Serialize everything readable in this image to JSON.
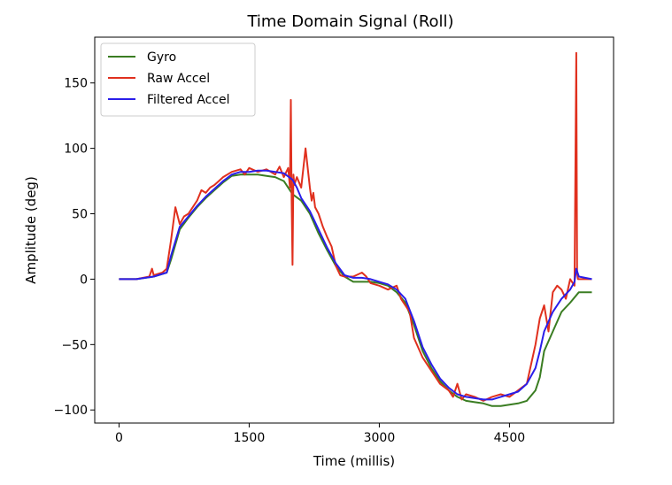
{
  "chart_data": {
    "type": "line",
    "title": "Time Domain Signal (Roll)",
    "xlabel": "Time (millis)",
    "ylabel": "Amplitude (deg)",
    "xlim": [
      -280,
      5700
    ],
    "ylim": [
      -110,
      185
    ],
    "xticks": [
      0,
      1500,
      3000,
      4500
    ],
    "xtick_labels": [
      "0",
      "1500",
      "3000",
      "4500"
    ],
    "yticks": [
      -100,
      -50,
      0,
      50,
      100,
      150
    ],
    "ytick_labels": [
      "−100",
      "−50",
      "0",
      "50",
      "100",
      "150"
    ],
    "grid": false,
    "legend": {
      "position": "top-left"
    },
    "series": [
      {
        "name": "Gyro",
        "color": "#3a7d22",
        "x": [
          0,
          200,
          400,
          550,
          600,
          700,
          800,
          900,
          1000,
          1100,
          1200,
          1300,
          1400,
          1500,
          1600,
          1700,
          1800,
          1900,
          2000,
          2100,
          2200,
          2300,
          2400,
          2500,
          2600,
          2700,
          2800,
          2900,
          3000,
          3100,
          3200,
          3300,
          3400,
          3500,
          3600,
          3700,
          3800,
          3900,
          4000,
          4100,
          4200,
          4300,
          4400,
          4500,
          4600,
          4700,
          4800,
          4850,
          4900,
          5000,
          5100,
          5200,
          5300,
          5450
        ],
        "y": [
          0,
          0,
          2,
          5,
          15,
          38,
          47,
          55,
          62,
          68,
          74,
          79,
          80,
          80,
          80,
          79,
          78,
          75,
          65,
          60,
          50,
          35,
          22,
          10,
          2,
          -2,
          -2,
          -2,
          -3,
          -5,
          -10,
          -18,
          -35,
          -55,
          -68,
          -78,
          -85,
          -90,
          -93,
          -94,
          -95,
          -97,
          -97,
          -96,
          -95,
          -93,
          -85,
          -75,
          -55,
          -40,
          -25,
          -18,
          -10,
          -10
        ]
      },
      {
        "name": "Raw Accel",
        "color": "#e0301e",
        "x": [
          0,
          200,
          350,
          380,
          400,
          500,
          550,
          600,
          650,
          700,
          750,
          800,
          900,
          950,
          1000,
          1050,
          1100,
          1150,
          1200,
          1300,
          1400,
          1450,
          1500,
          1600,
          1700,
          1800,
          1850,
          1900,
          1950,
          1970,
          1980,
          1990,
          2000,
          2010,
          2020,
          2050,
          2100,
          2150,
          2200,
          2220,
          2240,
          2260,
          2300,
          2350,
          2400,
          2450,
          2500,
          2550,
          2600,
          2700,
          2800,
          2850,
          2900,
          3000,
          3100,
          3200,
          3250,
          3300,
          3350,
          3400,
          3500,
          3600,
          3700,
          3800,
          3850,
          3900,
          3950,
          4000,
          4100,
          4200,
          4300,
          4400,
          4500,
          4600,
          4700,
          4750,
          4800,
          4850,
          4900,
          4950,
          5000,
          5050,
          5100,
          5150,
          5200,
          5250,
          5270,
          5280,
          5290,
          5300,
          5350,
          5450
        ],
        "y": [
          0,
          0,
          2,
          8,
          3,
          5,
          8,
          30,
          55,
          42,
          48,
          50,
          60,
          68,
          66,
          70,
          72,
          75,
          78,
          82,
          84,
          80,
          85,
          82,
          84,
          80,
          86,
          78,
          85,
          70,
          137,
          60,
          11,
          80,
          72,
          78,
          70,
          100,
          70,
          60,
          66,
          55,
          50,
          40,
          32,
          25,
          10,
          3,
          2,
          2,
          5,
          2,
          -3,
          -5,
          -8,
          -5,
          -15,
          -20,
          -25,
          -45,
          -60,
          -70,
          -80,
          -85,
          -90,
          -80,
          -92,
          -88,
          -90,
          -93,
          -90,
          -88,
          -90,
          -85,
          -80,
          -65,
          -50,
          -30,
          -20,
          -40,
          -10,
          -5,
          -8,
          -15,
          0,
          -5,
          173,
          5,
          0,
          0,
          0,
          0
        ]
      },
      {
        "name": "Filtered Accel",
        "color": "#2a1eea",
        "x": [
          0,
          200,
          400,
          550,
          600,
          700,
          800,
          900,
          1000,
          1100,
          1200,
          1300,
          1400,
          1500,
          1600,
          1700,
          1800,
          1900,
          2000,
          2050,
          2100,
          2200,
          2300,
          2400,
          2500,
          2600,
          2700,
          2800,
          2900,
          3000,
          3100,
          3200,
          3300,
          3400,
          3500,
          3600,
          3700,
          3800,
          3900,
          4000,
          4100,
          4200,
          4300,
          4400,
          4500,
          4600,
          4700,
          4800,
          4850,
          4900,
          5000,
          5100,
          5200,
          5250,
          5270,
          5300,
          5450
        ],
        "y": [
          0,
          0,
          2,
          5,
          18,
          40,
          48,
          56,
          63,
          69,
          75,
          80,
          82,
          82,
          83,
          83,
          82,
          81,
          76,
          70,
          62,
          52,
          38,
          24,
          12,
          3,
          1,
          1,
          0,
          -2,
          -4,
          -8,
          -15,
          -32,
          -52,
          -65,
          -76,
          -83,
          -88,
          -90,
          -91,
          -92,
          -92,
          -90,
          -88,
          -86,
          -80,
          -68,
          -55,
          -40,
          -25,
          -15,
          -8,
          -2,
          8,
          2,
          0
        ]
      }
    ]
  }
}
